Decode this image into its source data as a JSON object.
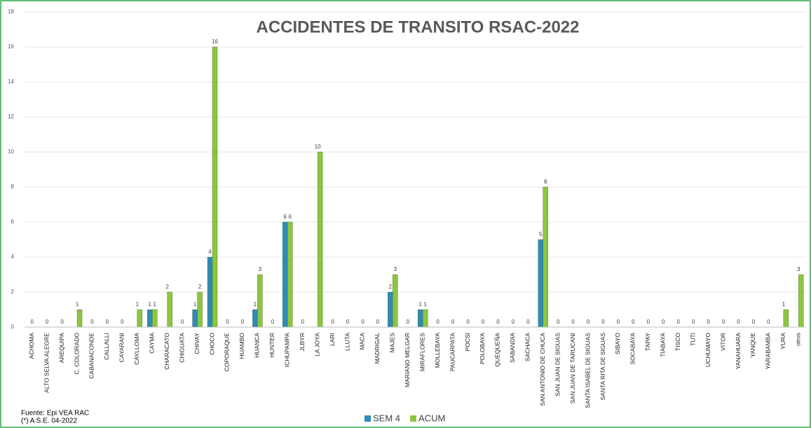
{
  "chart_data": {
    "type": "bar",
    "title": "ACCIDENTES DE TRANSITO RSAC-2022",
    "categories": [
      "ACHOMA",
      "ALTO SELVA ALEGRE",
      "AREQUIPA",
      "C. COLORADO",
      "CABANACONDE",
      "CALLALLI",
      "CAYARANI",
      "CAYLLOMA",
      "CAYMA",
      "CHARACATO",
      "CHIGUATA",
      "CHIVAY",
      "CHOCO",
      "COPORAQUE",
      "HUAMBO",
      "HUANCA",
      "HUNTER",
      "ICHUPAMPA",
      "JLBYR",
      "LA JOYA",
      "LARI",
      "LLUTA",
      "MACA",
      "MADRIGAL",
      "MAJES",
      "MARIANO MELGAR",
      "MIRAFLORES",
      "MOLLEBAYA",
      "PAUCARPATA",
      "POCSI",
      "POLOBAYA",
      "QUEQUEÑA",
      "SABANDIA",
      "SACHACA",
      "SAN ANTONIO DE CHUCA",
      "SAN JUAN DE SIGUAS",
      "SAN JUAN DE TARUCANI",
      "SANTA ISABEL DE SIGUAS",
      "SANTA RITA DE SIGUAS",
      "SIBAYO",
      "SOCABAYA",
      "TAPAY",
      "TIABAYA",
      "TISCO",
      "TUTI",
      "UCHUMAYO",
      "VITOR",
      "YANAHUARA",
      "YANQUE",
      "YARABAMBA",
      "YURA",
      "otros"
    ],
    "series": [
      {
        "name": "SEM 4",
        "color": "#2e8bb8",
        "values": [
          0,
          0,
          0,
          0,
          0,
          0,
          0,
          0,
          1,
          0,
          0,
          1,
          4,
          0,
          0,
          1,
          0,
          6,
          0,
          0,
          0,
          0,
          0,
          0,
          2,
          0,
          1,
          0,
          0,
          0,
          0,
          0,
          0,
          0,
          5,
          0,
          0,
          0,
          0,
          0,
          0,
          0,
          0,
          0,
          0,
          0,
          0,
          0,
          0,
          0,
          0,
          0
        ]
      },
      {
        "name": "ACUM",
        "color": "#8cc63f",
        "values": [
          0,
          0,
          0,
          1,
          0,
          0,
          0,
          1,
          1,
          2,
          0,
          2,
          16,
          0,
          0,
          3,
          0,
          6,
          0,
          10,
          0,
          0,
          0,
          0,
          3,
          0,
          1,
          0,
          0,
          0,
          0,
          0,
          0,
          0,
          8,
          0,
          0,
          0,
          0,
          0,
          0,
          0,
          0,
          0,
          0,
          0,
          0,
          0,
          0,
          0,
          1,
          3
        ]
      }
    ],
    "ylim": [
      0,
      18
    ],
    "yticks": [
      0,
      2,
      4,
      6,
      8,
      10,
      12,
      14,
      16,
      18
    ],
    "grid": true,
    "legend": "bottom",
    "notes": [
      "Fuente:  Epi VEA RAC",
      "(*) A S.E. 04-2022"
    ]
  }
}
